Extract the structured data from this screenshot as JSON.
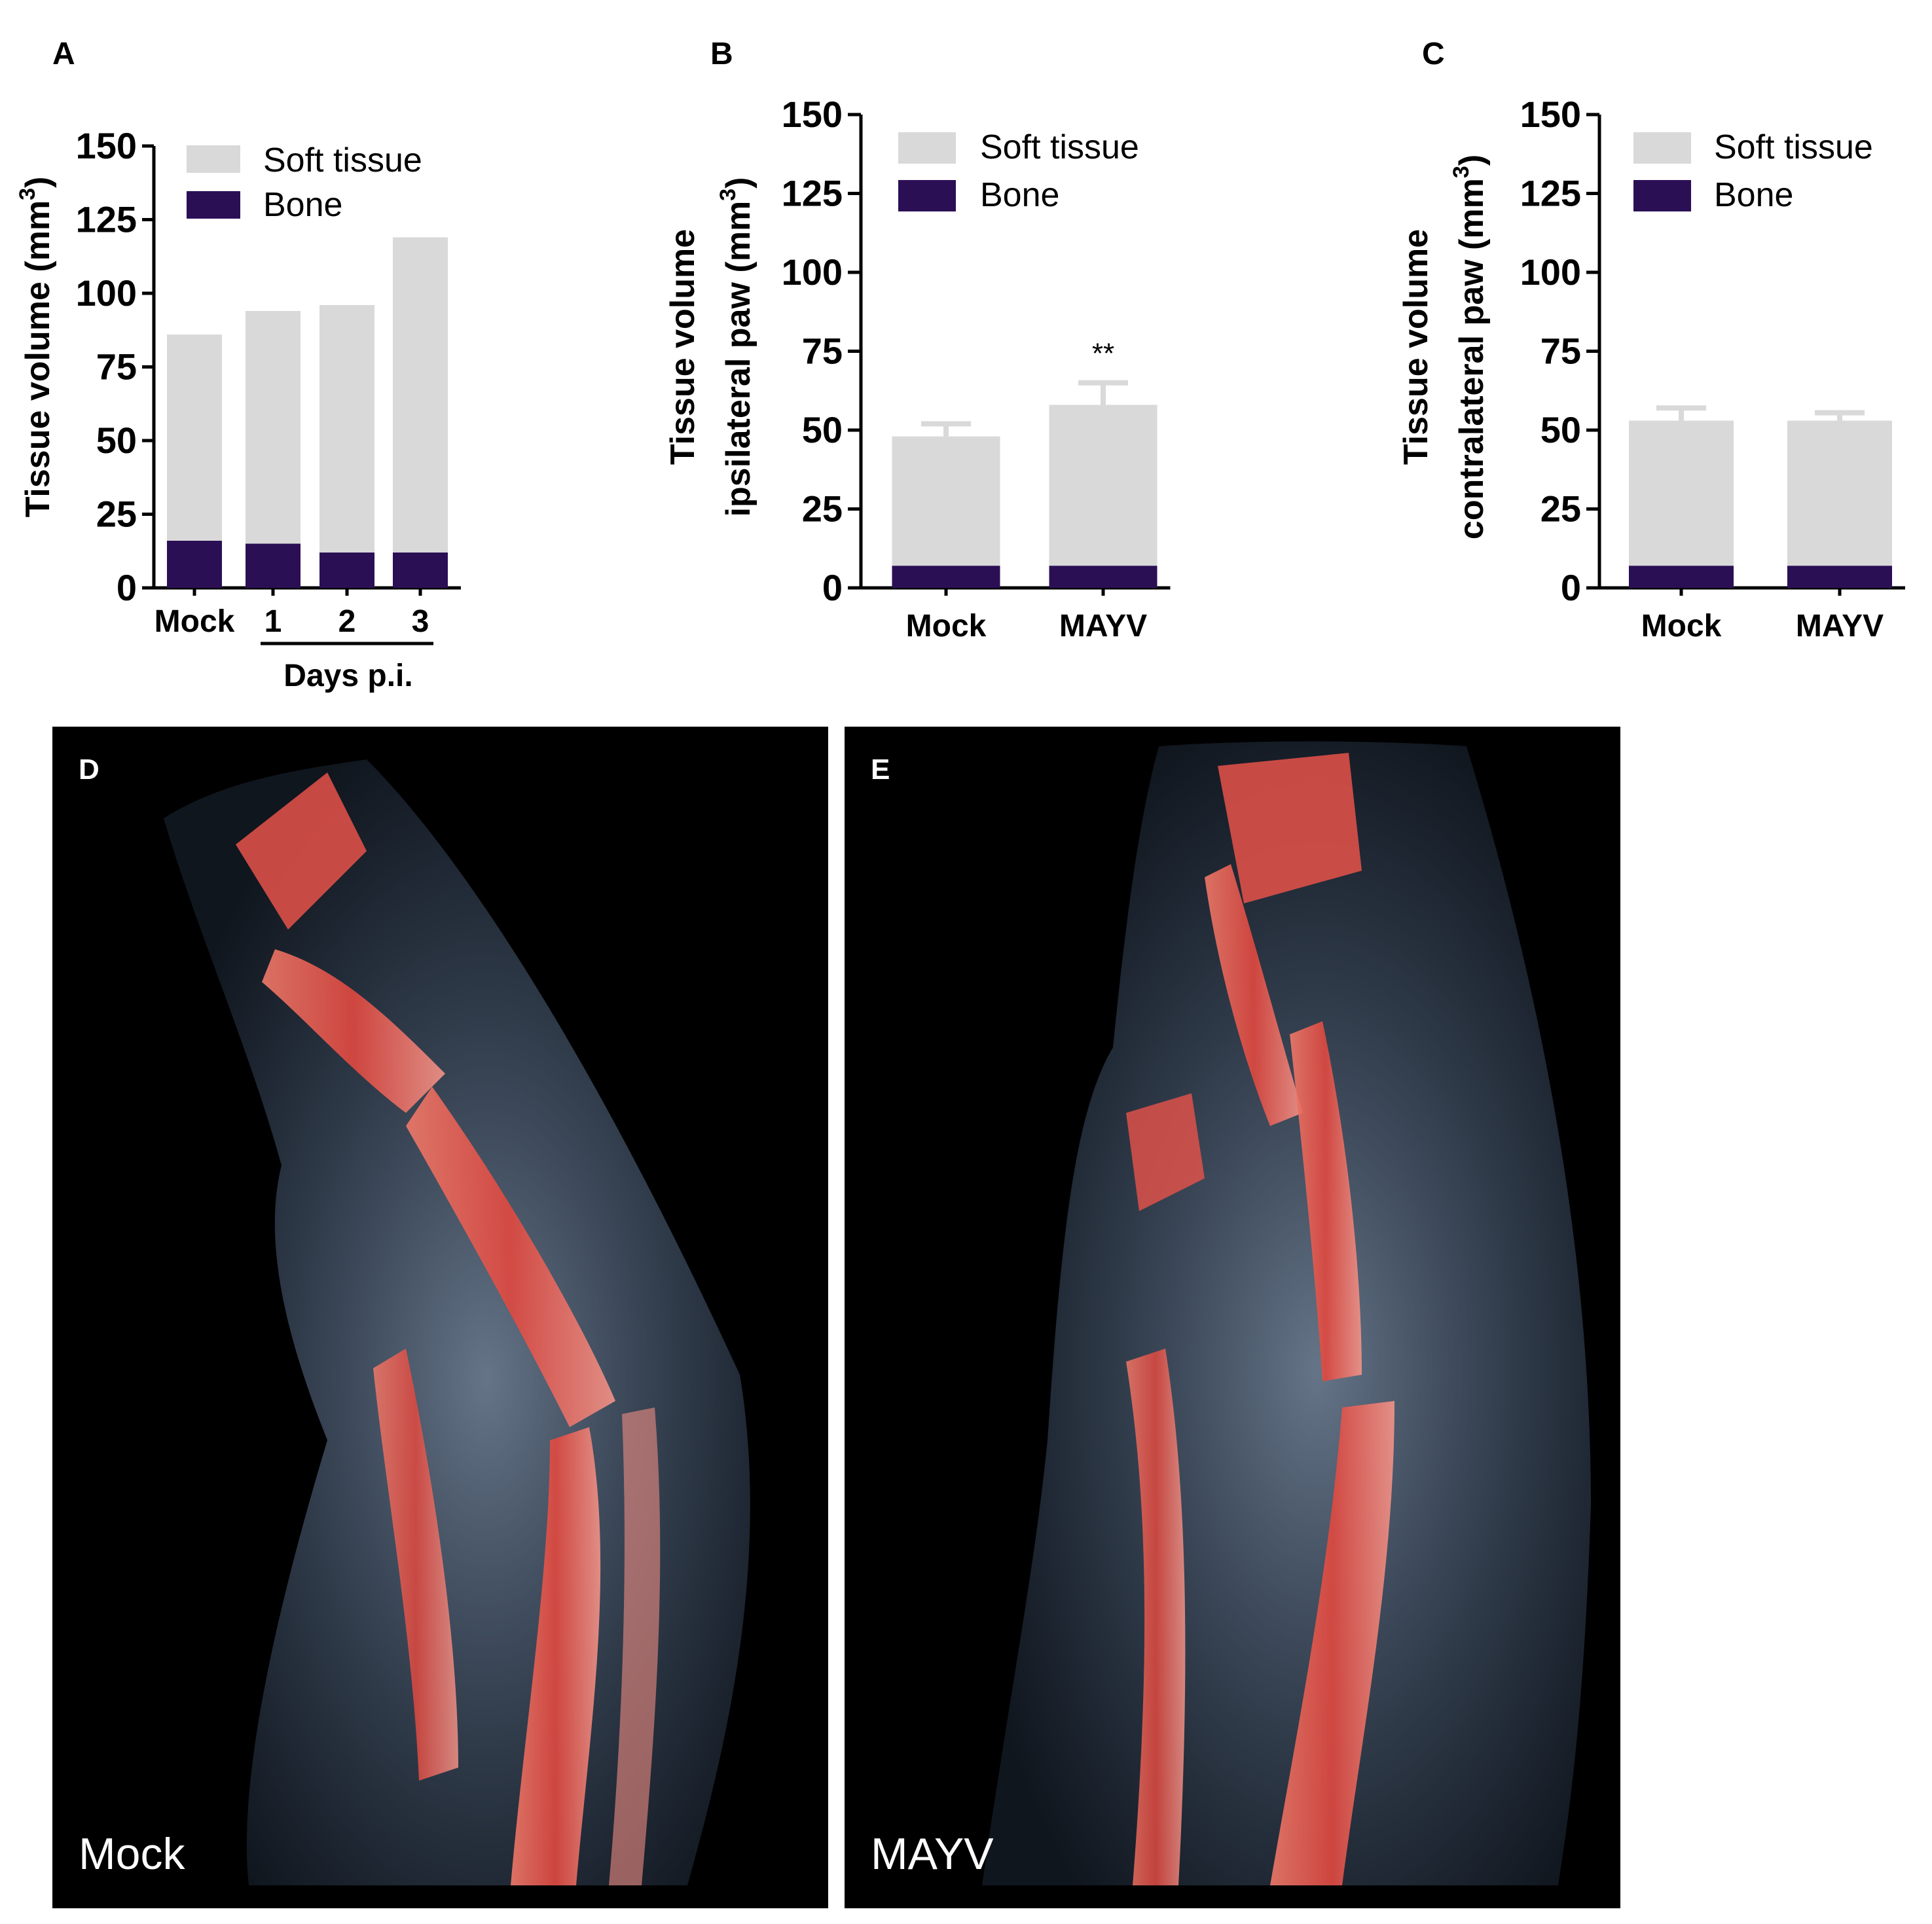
{
  "colors": {
    "soft_tissue": "#d9d9d9",
    "bone": "#2b0f55",
    "bone_render": "#e8524a",
    "soft_render": "#9cc0ee"
  },
  "legend": {
    "soft_tissue": "Soft tissue",
    "bone": "Bone"
  },
  "chart_data": [
    {
      "panel": "A",
      "type": "bar",
      "stacked": true,
      "categories": [
        "Mock",
        "1",
        "2",
        "3"
      ],
      "group_label": "Days p.i.",
      "ylabel_line1": "Tissue volume (mm",
      "ylabel_sup": "3",
      "ylabel_line2": ")",
      "ylim": [
        0,
        150
      ],
      "yticks": [
        0,
        25,
        50,
        75,
        100,
        125,
        150
      ],
      "series": [
        {
          "name": "Bone",
          "values": [
            16,
            15,
            12,
            12
          ]
        },
        {
          "name": "Soft tissue",
          "totals": [
            86,
            94,
            96,
            119
          ]
        }
      ],
      "legend_position": "top-left",
      "grid": false
    },
    {
      "panel": "B",
      "type": "bar",
      "stacked": true,
      "categories": [
        "Mock",
        "MAYV"
      ],
      "ylabel_line1": "Tissue volume",
      "ylabel_line2": "ipsilateral paw (mm",
      "ylabel_sup": "3",
      "ylabel_end": ")",
      "ylim": [
        0,
        150
      ],
      "yticks": [
        0,
        25,
        50,
        75,
        100,
        125,
        150
      ],
      "series": [
        {
          "name": "Bone",
          "values": [
            7,
            7
          ]
        },
        {
          "name": "Soft tissue",
          "totals": [
            48,
            58
          ],
          "errors": [
            4,
            7
          ]
        }
      ],
      "annotations": [
        {
          "category": "MAYV",
          "text": "**"
        }
      ],
      "legend_position": "top-left",
      "grid": false
    },
    {
      "panel": "C",
      "type": "bar",
      "stacked": true,
      "categories": [
        "Mock",
        "MAYV"
      ],
      "ylabel_line1": "Tissue volume",
      "ylabel_line2": "contralateral paw (mm",
      "ylabel_sup": "3",
      "ylabel_end": ")",
      "ylim": [
        0,
        150
      ],
      "yticks": [
        0,
        25,
        50,
        75,
        100,
        125,
        150
      ],
      "series": [
        {
          "name": "Bone",
          "values": [
            7,
            7
          ]
        },
        {
          "name": "Soft tissue",
          "totals": [
            53,
            53
          ],
          "errors": [
            4,
            2.5
          ]
        }
      ],
      "legend_position": "top-left",
      "grid": false
    }
  ],
  "images": [
    {
      "panel": "D",
      "label": "Mock"
    },
    {
      "panel": "E",
      "label": "MAYV"
    }
  ]
}
